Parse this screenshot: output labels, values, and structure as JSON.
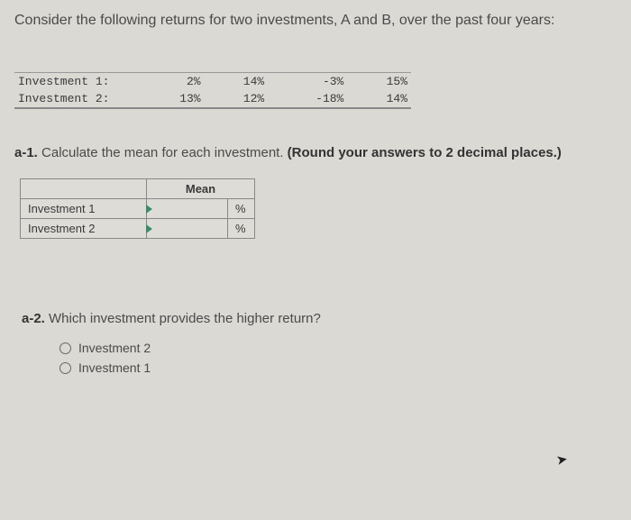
{
  "question": "Consider the following returns for two investments, A and B, over the past four years:",
  "dataTable": {
    "rows": [
      {
        "label": "Investment 1:",
        "vals": [
          "2%",
          "14%",
          "-3%",
          "15%"
        ]
      },
      {
        "label": "Investment 2:",
        "vals": [
          "13%",
          "12%",
          "-18%",
          "14%"
        ]
      }
    ]
  },
  "a1": {
    "prefix": "a-1.",
    "text": " Calculate the mean for each investment. ",
    "bold": "(Round your answers to 2 decimal places.)",
    "header_blank": "",
    "header_mean": "Mean",
    "rows": [
      {
        "label": "Investment 1",
        "unit": "%"
      },
      {
        "label": "Investment 2",
        "unit": "%"
      }
    ]
  },
  "a2": {
    "prefix": "a-2.",
    "text": " Which investment provides the higher return?",
    "options": [
      {
        "label": "Investment 2"
      },
      {
        "label": "Investment 1"
      }
    ]
  }
}
